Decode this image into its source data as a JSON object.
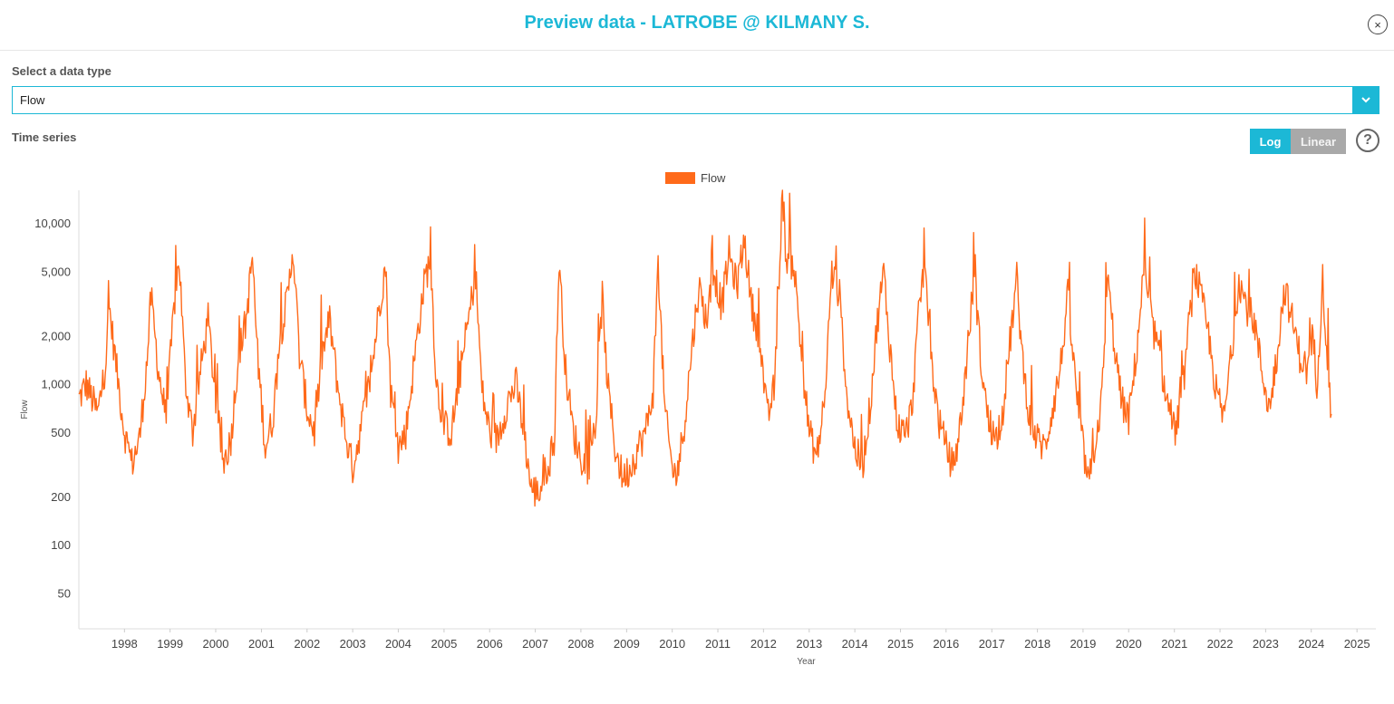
{
  "header": {
    "title": "Preview data - LATROBE @ KILMANY S.",
    "close_symbol": "×"
  },
  "data_type": {
    "label": "Select a data type",
    "selected": "Flow"
  },
  "time_series": {
    "label": "Time series",
    "log_label": "Log",
    "linear_label": "Linear",
    "help_symbol": "?",
    "active_scale": "Log"
  },
  "colors": {
    "accent": "#1cb8d6",
    "series": "#ff6a1a",
    "inactive_button": "#a9a9a9"
  },
  "chart_data": {
    "type": "line",
    "title": "",
    "xlabel": "Year",
    "ylabel": "Flow",
    "y_scale": "log",
    "ylim": [
      30,
      16000
    ],
    "xlim": [
      "1997-01-01",
      "2025-06-01"
    ],
    "y_ticks": [
      50,
      100,
      200,
      500,
      1000,
      2000,
      5000,
      10000
    ],
    "y_tick_labels": [
      "50",
      "100",
      "200",
      "500",
      "1,000",
      "2,000",
      "5,000",
      "10,000"
    ],
    "x_ticks": [
      "1998",
      "1999",
      "2000",
      "2001",
      "2002",
      "2003",
      "2004",
      "2005",
      "2006",
      "2007",
      "2008",
      "2009",
      "2010",
      "2011",
      "2012",
      "2013",
      "2014",
      "2015",
      "2016",
      "2017",
      "2018",
      "2019",
      "2020",
      "2021",
      "2022",
      "2023",
      "2024",
      "2025"
    ],
    "legend": {
      "position": "top-center",
      "entries": [
        "Flow"
      ]
    },
    "grid": false,
    "series": [
      {
        "name": "Flow",
        "color": "#ff6a1a",
        "points": [
          [
            "1997-01-01",
            800
          ],
          [
            "1997-03-01",
            1000
          ],
          [
            "1997-06-01",
            650
          ],
          [
            "1997-08-01",
            1300
          ],
          [
            "1997-09-01",
            3000
          ],
          [
            "1997-11-01",
            1200
          ],
          [
            "1998-01-01",
            500
          ],
          [
            "1998-03-01",
            320
          ],
          [
            "1998-05-01",
            450
          ],
          [
            "1998-07-01",
            1400
          ],
          [
            "1998-08-01",
            3500
          ],
          [
            "1998-10-01",
            1200
          ],
          [
            "1998-12-01",
            600
          ],
          [
            "1999-02-01",
            3000
          ],
          [
            "1999-03-15",
            6000
          ],
          [
            "1999-05-01",
            1100
          ],
          [
            "1999-07-01",
            500
          ],
          [
            "1999-09-01",
            1200
          ],
          [
            "1999-11-01",
            2500
          ],
          [
            "2000-01-01",
            800
          ],
          [
            "2000-03-01",
            320
          ],
          [
            "2000-05-01",
            450
          ],
          [
            "2000-07-01",
            1500
          ],
          [
            "2000-09-01",
            2500
          ],
          [
            "2000-10-20",
            6200
          ],
          [
            "2000-12-01",
            1500
          ],
          [
            "2001-02-01",
            400
          ],
          [
            "2001-04-01",
            600
          ],
          [
            "2001-06-01",
            2000
          ],
          [
            "2001-08-01",
            3500
          ],
          [
            "2001-09-10",
            7200
          ],
          [
            "2001-11-01",
            1500
          ],
          [
            "2002-01-01",
            700
          ],
          [
            "2002-03-01",
            500
          ],
          [
            "2002-05-01",
            1500
          ],
          [
            "2002-07-01",
            2500
          ],
          [
            "2002-09-01",
            1000
          ],
          [
            "2002-11-01",
            500
          ],
          [
            "2003-01-01",
            300
          ],
          [
            "2003-03-01",
            500
          ],
          [
            "2003-06-01",
            1200
          ],
          [
            "2003-08-01",
            3000
          ],
          [
            "2003-09-20",
            5500
          ],
          [
            "2003-11-01",
            900
          ],
          [
            "2004-01-01",
            400
          ],
          [
            "2004-03-01",
            500
          ],
          [
            "2004-06-01",
            2000
          ],
          [
            "2004-08-01",
            4500
          ],
          [
            "2004-09-15",
            6000
          ],
          [
            "2004-11-01",
            1000
          ],
          [
            "2005-01-01",
            550
          ],
          [
            "2005-03-01",
            500
          ],
          [
            "2005-06-01",
            1500
          ],
          [
            "2005-08-01",
            3000
          ],
          [
            "2005-09-10",
            5000
          ],
          [
            "2005-11-01",
            900
          ],
          [
            "2006-01-01",
            500
          ],
          [
            "2006-03-01",
            450
          ],
          [
            "2006-06-01",
            800
          ],
          [
            "2006-08-01",
            1000
          ],
          [
            "2006-10-01",
            500
          ],
          [
            "2006-12-01",
            220
          ],
          [
            "2007-02-01",
            210
          ],
          [
            "2007-04-01",
            300
          ],
          [
            "2007-06-01",
            400
          ],
          [
            "2007-07-10",
            6000
          ],
          [
            "2007-09-01",
            1200
          ],
          [
            "2007-11-01",
            500
          ],
          [
            "2008-01-01",
            350
          ],
          [
            "2008-03-01",
            300
          ],
          [
            "2008-05-01",
            600
          ],
          [
            "2008-06-20",
            3500
          ],
          [
            "2008-08-01",
            1000
          ],
          [
            "2008-10-01",
            400
          ],
          [
            "2008-12-01",
            260
          ],
          [
            "2009-02-01",
            300
          ],
          [
            "2009-04-01",
            400
          ],
          [
            "2009-06-01",
            500
          ],
          [
            "2009-08-01",
            900
          ],
          [
            "2009-09-10",
            5500
          ],
          [
            "2009-11-01",
            700
          ],
          [
            "2010-01-01",
            300
          ],
          [
            "2010-02-01",
            260
          ],
          [
            "2010-04-01",
            500
          ],
          [
            "2010-06-01",
            1500
          ],
          [
            "2010-08-01",
            4000
          ],
          [
            "2010-10-01",
            2500
          ],
          [
            "2010-12-01",
            5000
          ],
          [
            "2011-02-01",
            3000
          ],
          [
            "2011-04-01",
            6500
          ],
          [
            "2011-06-01",
            4000
          ],
          [
            "2011-08-01",
            8000
          ],
          [
            "2011-10-01",
            3000
          ],
          [
            "2011-12-01",
            2000
          ],
          [
            "2012-02-01",
            600
          ],
          [
            "2012-04-01",
            1000
          ],
          [
            "2012-06-01",
            16000
          ],
          [
            "2012-07-01",
            6000
          ],
          [
            "2012-09-01",
            5500
          ],
          [
            "2012-11-01",
            1500
          ],
          [
            "2013-01-01",
            500
          ],
          [
            "2013-03-01",
            350
          ],
          [
            "2013-05-01",
            700
          ],
          [
            "2013-07-01",
            5000
          ],
          [
            "2013-09-01",
            3500
          ],
          [
            "2013-11-01",
            800
          ],
          [
            "2014-01-01",
            400
          ],
          [
            "2014-03-01",
            300
          ],
          [
            "2014-05-01",
            700
          ],
          [
            "2014-07-01",
            2500
          ],
          [
            "2014-08-20",
            5000
          ],
          [
            "2014-10-01",
            2000
          ],
          [
            "2014-12-01",
            600
          ],
          [
            "2015-02-01",
            450
          ],
          [
            "2015-04-01",
            700
          ],
          [
            "2015-06-01",
            3000
          ],
          [
            "2015-07-15",
            6000
          ],
          [
            "2015-09-01",
            1500
          ],
          [
            "2015-11-01",
            600
          ],
          [
            "2016-01-01",
            400
          ],
          [
            "2016-03-01",
            300
          ],
          [
            "2016-05-01",
            600
          ],
          [
            "2016-07-01",
            2000
          ],
          [
            "2016-08-15",
            5000
          ],
          [
            "2016-10-01",
            1500
          ],
          [
            "2016-12-01",
            600
          ],
          [
            "2017-02-01",
            450
          ],
          [
            "2017-04-01",
            700
          ],
          [
            "2017-06-01",
            2000
          ],
          [
            "2017-07-20",
            4500
          ],
          [
            "2017-09-01",
            1500
          ],
          [
            "2017-11-01",
            600
          ],
          [
            "2018-01-01",
            450
          ],
          [
            "2018-03-01",
            400
          ],
          [
            "2018-05-01",
            700
          ],
          [
            "2018-07-01",
            1200
          ],
          [
            "2018-09-01",
            3500
          ],
          [
            "2018-11-01",
            1000
          ],
          [
            "2019-01-01",
            400
          ],
          [
            "2019-02-15",
            230
          ],
          [
            "2019-04-01",
            400
          ],
          [
            "2019-06-01",
            800
          ],
          [
            "2019-07-15",
            4500
          ],
          [
            "2019-09-01",
            2000
          ],
          [
            "2019-11-01",
            800
          ],
          [
            "2020-01-01",
            600
          ],
          [
            "2020-03-01",
            1500
          ],
          [
            "2020-05-01",
            5000
          ],
          [
            "2020-07-01",
            2500
          ],
          [
            "2020-09-01",
            1500
          ],
          [
            "2020-11-01",
            800
          ],
          [
            "2021-01-01",
            500
          ],
          [
            "2021-03-01",
            800
          ],
          [
            "2021-05-01",
            2500
          ],
          [
            "2021-06-15",
            5000
          ],
          [
            "2021-08-01",
            3500
          ],
          [
            "2021-10-01",
            2000
          ],
          [
            "2021-12-01",
            900
          ],
          [
            "2022-02-01",
            600
          ],
          [
            "2022-04-01",
            1500
          ],
          [
            "2022-06-01",
            4500
          ],
          [
            "2022-08-01",
            3000
          ],
          [
            "2022-10-01",
            2500
          ],
          [
            "2022-12-01",
            1200
          ],
          [
            "2023-02-01",
            700
          ],
          [
            "2023-04-01",
            1500
          ],
          [
            "2023-06-01",
            4000
          ],
          [
            "2023-08-01",
            2500
          ],
          [
            "2023-10-01",
            1500
          ],
          [
            "2023-12-01",
            1200
          ],
          [
            "2024-01-15",
            2000
          ],
          [
            "2024-02-15",
            1000
          ],
          [
            "2024-04-01",
            4500
          ],
          [
            "2024-05-15",
            1200
          ],
          [
            "2024-06-10",
            650
          ]
        ]
      }
    ]
  }
}
